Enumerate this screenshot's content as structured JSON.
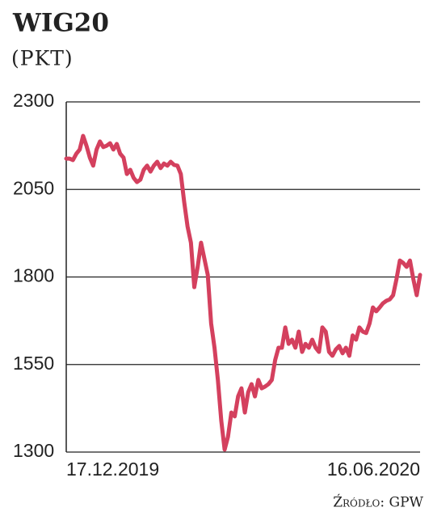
{
  "chart_data": {
    "type": "line",
    "title": "WIG20",
    "subtitle": "(PKT)",
    "source": "Źródło: GPW",
    "categories": [
      "17.12.2019",
      null,
      null,
      null,
      null,
      null,
      null,
      null,
      null,
      null,
      null,
      null,
      null,
      null,
      null,
      null,
      null,
      null,
      null,
      null,
      null,
      null,
      null,
      null,
      null,
      null,
      null,
      null,
      null,
      null,
      null,
      null,
      null,
      null,
      null,
      null,
      null,
      null,
      null,
      null,
      null,
      null,
      null,
      null,
      null,
      null,
      null,
      null,
      null,
      null,
      null,
      null,
      null,
      null,
      null,
      null,
      null,
      null,
      null,
      null,
      null,
      null,
      null,
      null,
      null,
      null,
      null,
      null,
      null,
      null,
      null,
      null,
      null,
      null,
      null,
      null,
      null,
      null,
      null,
      null,
      null,
      null,
      null,
      null,
      null,
      null,
      null,
      null,
      null,
      null,
      null,
      null,
      null,
      null,
      null,
      null,
      null,
      null,
      null,
      null,
      null,
      null,
      null,
      null,
      null,
      "16.06.2020"
    ],
    "series": [
      {
        "color": "#d4405e",
        "values": [
          2138,
          2138,
          2134,
          2152,
          2164,
          2203,
          2175,
          2141,
          2118,
          2164,
          2187,
          2171,
          2175,
          2182,
          2164,
          2180,
          2152,
          2141,
          2094,
          2106,
          2083,
          2071,
          2078,
          2106,
          2118,
          2101,
          2118,
          2129,
          2111,
          2124,
          2118,
          2129,
          2120,
          2118,
          2094,
          2014,
          1944,
          1898,
          1771,
          1829,
          1898,
          1852,
          1806,
          1667,
          1598,
          1506,
          1390,
          1307,
          1344,
          1413,
          1402,
          1459,
          1482,
          1413,
          1471,
          1494,
          1459,
          1506,
          1482,
          1487,
          1494,
          1506,
          1563,
          1598,
          1598,
          1656,
          1609,
          1621,
          1598,
          1644,
          1586,
          1609,
          1598,
          1621,
          1598,
          1586,
          1656,
          1644,
          1586,
          1575,
          1593,
          1603,
          1582,
          1598,
          1575,
          1633,
          1621,
          1656,
          1644,
          1640,
          1667,
          1713,
          1702,
          1713,
          1725,
          1732,
          1736,
          1748,
          1794,
          1847,
          1840,
          1829,
          1847,
          1794,
          1748,
          1806
        ]
      }
    ],
    "ylim": [
      1300,
      2300
    ],
    "yticks": [
      1300,
      1550,
      1800,
      2050,
      2300
    ],
    "grid": true
  }
}
